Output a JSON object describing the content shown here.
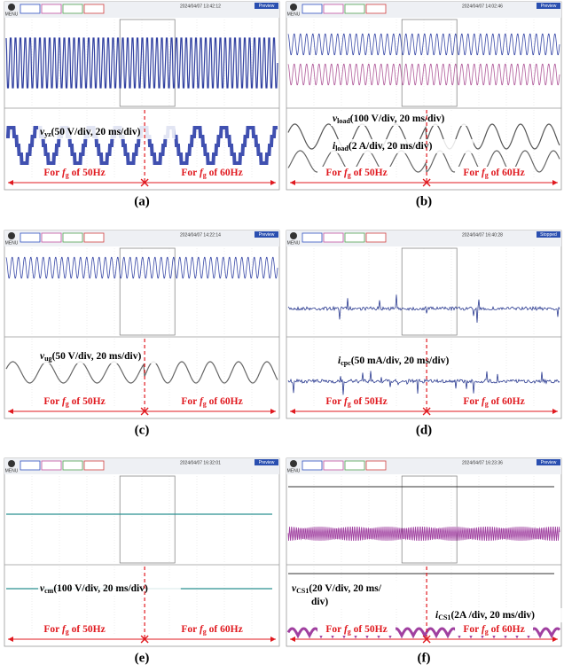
{
  "panels": [
    {
      "label": "(a)",
      "menu": "MENU",
      "timestamp": "2024/04/07 13:42:12",
      "status": "Preview",
      "annotations": [
        {
          "symbol": "v",
          "sub": "yz",
          "lines": [
            "(50 V/div, 20 ms/div)"
          ]
        }
      ],
      "ranges": [
        {
          "prefix": "For ",
          "symbol": "f",
          "sub": "g",
          "suffix": " of 50Hz"
        },
        {
          "prefix": "For ",
          "symbol": "f",
          "sub": "g",
          "suffix": " of 60Hz"
        }
      ]
    },
    {
      "label": "(b)",
      "menu": "MENU",
      "timestamp": "2024/04/07 14:02:46",
      "status": "Preview",
      "annotations": [
        {
          "symbol": "v",
          "sub": "load",
          "lines": [
            "(100 V/div, 20 ms/div)"
          ]
        },
        {
          "symbol": "i",
          "sub": "load",
          "lines": [
            "(2 A/div, 20 ms/div)"
          ]
        }
      ],
      "ranges": [
        {
          "prefix": "For ",
          "symbol": "f",
          "sub": "g",
          "suffix": " of 50Hz"
        },
        {
          "prefix": "For ",
          "symbol": "f",
          "sub": "g",
          "suffix": " of 60Hz"
        }
      ]
    },
    {
      "label": "(c)",
      "menu": "MENU",
      "timestamp": "2024/04/07 14:22:14",
      "status": "Preview",
      "annotations": [
        {
          "symbol": "v",
          "sub": "ug",
          "lines": [
            "(50 V/div, 20 ms/div)"
          ]
        }
      ],
      "ranges": [
        {
          "prefix": "For ",
          "symbol": "f",
          "sub": "g",
          "suffix": " of 50Hz"
        },
        {
          "prefix": "For ",
          "symbol": "f",
          "sub": "g",
          "suffix": " of 60Hz"
        }
      ]
    },
    {
      "label": "(d)",
      "menu": "MENU",
      "timestamp": "2024/04/07 16:40:28",
      "status": "Stopped",
      "annotations": [
        {
          "symbol": "i",
          "sub": "cpc",
          "lines": [
            "(50 mA/div, 20 ms/div)"
          ]
        }
      ],
      "ranges": [
        {
          "prefix": "For ",
          "symbol": "f",
          "sub": "g",
          "suffix": " of 50Hz"
        },
        {
          "prefix": "For ",
          "symbol": "f",
          "sub": "g",
          "suffix": " of 60Hz"
        }
      ]
    },
    {
      "label": "(e)",
      "menu": "MENU",
      "timestamp": "2024/04/07 16:32:01",
      "status": "Preview",
      "annotations": [
        {
          "symbol": "v",
          "sub": "cm",
          "lines": [
            "(100 V/div, 20 ms/div)"
          ]
        }
      ],
      "ranges": [
        {
          "prefix": "For ",
          "symbol": "f",
          "sub": "g",
          "suffix": " of 50Hz"
        },
        {
          "prefix": "For ",
          "symbol": "f",
          "sub": "g",
          "suffix": " of 60Hz"
        }
      ]
    },
    {
      "label": "(f)",
      "menu": "MENU",
      "timestamp": "2024/04/07 16:23:36",
      "status": "Preview",
      "annotations": [
        {
          "symbol": "v",
          "sub": "CS1",
          "lines": [
            "(20 V/div, 20 ms/",
            "div)"
          ]
        },
        {
          "symbol": "i",
          "sub": "CS1",
          "lines": [
            "(2A /div, 20 ms/div)"
          ]
        }
      ],
      "ranges": [
        {
          "prefix": "For ",
          "symbol": "f",
          "sub": "g",
          "suffix": " of 50Hz"
        },
        {
          "prefix": "For ",
          "symbol": "f",
          "sub": "g",
          "suffix": " of 60Hz"
        }
      ]
    }
  ]
}
